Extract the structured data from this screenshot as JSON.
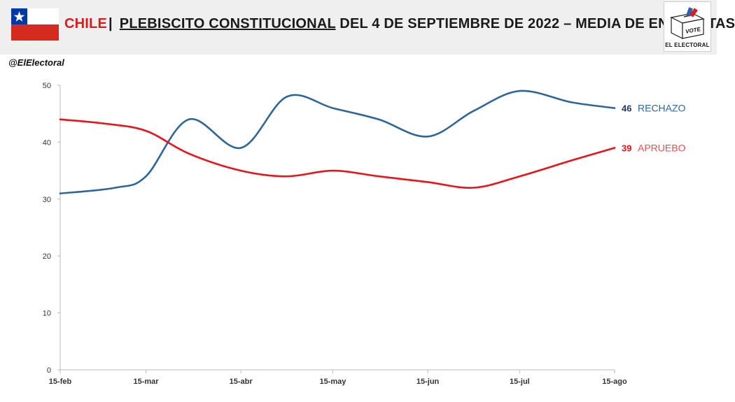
{
  "header": {
    "country": "CHILE",
    "separator": "|",
    "title_underlined": "PLEBISCITO CONSTITUCIONAL",
    "title_rest": "DEL 4 DE SEPTIEMBRE DE 2022 – MEDIA DE ENCUESTAS",
    "flag_icon": "chile-flag-icon",
    "logo_icon": "ballot-box-icon",
    "logo_box_text": "VOTE",
    "logo_label": "EL ELECTORAL"
  },
  "handle": "@ElElectoral",
  "colors": {
    "rechazo": "#2f6699",
    "apruebo": "#e8141b",
    "apruebo_label": "#f04a50",
    "rechazo_value": "#1f3a66"
  },
  "chart_data": {
    "type": "line",
    "x_labels": [
      "15-feb",
      "15-mar",
      "15-abr",
      "15-may",
      "15-jun",
      "15-jul",
      "15-ago"
    ],
    "ylim": [
      0,
      50
    ],
    "yticks": [
      0,
      10,
      20,
      30,
      40,
      50
    ],
    "grid": false,
    "series": [
      {
        "name": "RECHAZO",
        "end_label": "46",
        "points": [
          {
            "x": "2022-02-15",
            "y": 31
          },
          {
            "x": "2022-03-05",
            "y": 32
          },
          {
            "x": "2022-03-15",
            "y": 34
          },
          {
            "x": "2022-03-29",
            "y": 44
          },
          {
            "x": "2022-04-15",
            "y": 39
          },
          {
            "x": "2022-04-30",
            "y": 48
          },
          {
            "x": "2022-05-15",
            "y": 46
          },
          {
            "x": "2022-05-30",
            "y": 44
          },
          {
            "x": "2022-06-15",
            "y": 41
          },
          {
            "x": "2022-06-30",
            "y": 45.5
          },
          {
            "x": "2022-07-15",
            "y": 49
          },
          {
            "x": "2022-08-01",
            "y": 47
          },
          {
            "x": "2022-08-15",
            "y": 46
          }
        ]
      },
      {
        "name": "APRUEBO",
        "end_label": "39",
        "points": [
          {
            "x": "2022-02-15",
            "y": 44
          },
          {
            "x": "2022-03-01",
            "y": 43.3
          },
          {
            "x": "2022-03-15",
            "y": 42
          },
          {
            "x": "2022-03-29",
            "y": 38
          },
          {
            "x": "2022-04-15",
            "y": 35
          },
          {
            "x": "2022-04-30",
            "y": 34
          },
          {
            "x": "2022-05-15",
            "y": 35
          },
          {
            "x": "2022-05-30",
            "y": 34
          },
          {
            "x": "2022-06-15",
            "y": 33
          },
          {
            "x": "2022-06-30",
            "y": 32
          },
          {
            "x": "2022-07-15",
            "y": 34
          },
          {
            "x": "2022-08-01",
            "y": 36.8
          },
          {
            "x": "2022-08-15",
            "y": 39
          }
        ]
      }
    ]
  }
}
